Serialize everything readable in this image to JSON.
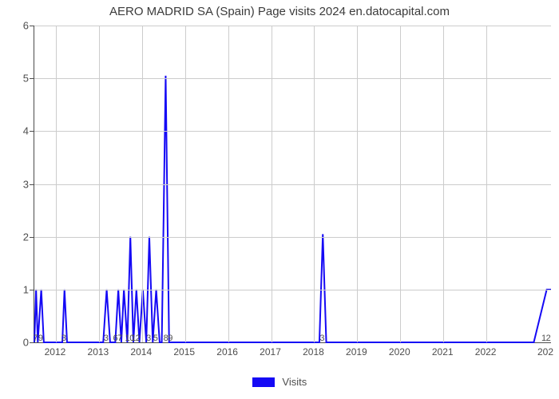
{
  "title": "AERO MADRID SA (Spain) Page visits 2024 en.datocapital.com",
  "chart": {
    "type": "line",
    "background_color": "#ffffff",
    "grid_color": "#cccccc",
    "axis_color": "#4d4d4d",
    "text_color": "#4d4d4d",
    "line_color": "#1509f5",
    "line_width": 2,
    "title_fontsize": 15,
    "label_fontsize": 13,
    "tick_fontsize": 12,
    "x_domain": [
      2011.5,
      2023.5
    ],
    "y_domain": [
      0,
      6
    ],
    "y_ticks": [
      0,
      1,
      2,
      3,
      4,
      5,
      6
    ],
    "x_year_ticks": [
      2012,
      2013,
      2014,
      2015,
      2016,
      2017,
      2018,
      2019,
      2020,
      2021,
      2022
    ],
    "x_right_edge_label": "202",
    "x_month_ticks": [
      {
        "x": 2011.54,
        "label": "7"
      },
      {
        "x": 2011.66,
        "label": "9"
      },
      {
        "x": 2012.2,
        "label": "3"
      },
      {
        "x": 2013.18,
        "label": "3"
      },
      {
        "x": 2013.45,
        "label": "67"
      },
      {
        "x": 2013.73,
        "label": "10"
      },
      {
        "x": 2013.87,
        "label": "12"
      },
      {
        "x": 2014.17,
        "label": "3"
      },
      {
        "x": 2014.33,
        "label": "5"
      },
      {
        "x": 2014.62,
        "label": "89"
      },
      {
        "x": 2018.2,
        "label": "3"
      },
      {
        "x": 2023.4,
        "label": "12"
      }
    ],
    "data_points": [
      {
        "x": 2011.5,
        "y": 0
      },
      {
        "x": 2011.54,
        "y": 1
      },
      {
        "x": 2011.58,
        "y": 0
      },
      {
        "x": 2011.66,
        "y": 1
      },
      {
        "x": 2011.72,
        "y": 0
      },
      {
        "x": 2012.15,
        "y": 0
      },
      {
        "x": 2012.2,
        "y": 1
      },
      {
        "x": 2012.26,
        "y": 0
      },
      {
        "x": 2013.1,
        "y": 0
      },
      {
        "x": 2013.18,
        "y": 1
      },
      {
        "x": 2013.26,
        "y": 0
      },
      {
        "x": 2013.38,
        "y": 0
      },
      {
        "x": 2013.45,
        "y": 1
      },
      {
        "x": 2013.52,
        "y": 0
      },
      {
        "x": 2013.58,
        "y": 1
      },
      {
        "x": 2013.66,
        "y": 0
      },
      {
        "x": 2013.73,
        "y": 2
      },
      {
        "x": 2013.8,
        "y": 0
      },
      {
        "x": 2013.87,
        "y": 1
      },
      {
        "x": 2013.94,
        "y": 0
      },
      {
        "x": 2014.02,
        "y": 1
      },
      {
        "x": 2014.1,
        "y": 0
      },
      {
        "x": 2014.17,
        "y": 2
      },
      {
        "x": 2014.25,
        "y": 0
      },
      {
        "x": 2014.33,
        "y": 1
      },
      {
        "x": 2014.41,
        "y": 0
      },
      {
        "x": 2014.46,
        "y": 0
      },
      {
        "x": 2014.55,
        "y": 5.05
      },
      {
        "x": 2014.63,
        "y": 0
      },
      {
        "x": 2014.7,
        "y": 0
      },
      {
        "x": 2018.12,
        "y": 0
      },
      {
        "x": 2018.2,
        "y": 2.05
      },
      {
        "x": 2018.28,
        "y": 0
      },
      {
        "x": 2023.1,
        "y": 0
      },
      {
        "x": 2023.4,
        "y": 1
      },
      {
        "x": 2023.5,
        "y": 1
      }
    ]
  },
  "legend": {
    "items": [
      {
        "color": "#1509f5",
        "label": "Visits"
      }
    ]
  }
}
